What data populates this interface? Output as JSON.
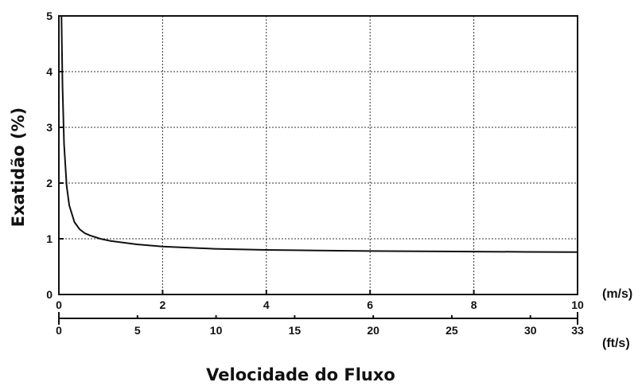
{
  "chart_data": {
    "type": "line",
    "title": "",
    "xlabel": "Velocidade do Fluxo",
    "ylabel": "Exatidão (%)",
    "x_unit": "(m/s)",
    "secondary_x_unit": "(ft/s)",
    "xlim": [
      0,
      10
    ],
    "ylim": [
      0,
      5
    ],
    "x_ticks": [
      "0",
      "2",
      "4",
      "6",
      "8",
      "10"
    ],
    "y_ticks": [
      "0",
      "1",
      "2",
      "3",
      "4",
      "5"
    ],
    "secondary_x_ticks": [
      "0",
      "5",
      "10",
      "15",
      "20",
      "25",
      "30",
      "33"
    ],
    "secondary_x_values": [
      0,
      5,
      10,
      15,
      20,
      25,
      30,
      33
    ],
    "grid": true,
    "series": [
      {
        "x": [
          0.05,
          0.07,
          0.1,
          0.15,
          0.2,
          0.3,
          0.4,
          0.5,
          0.6,
          0.8,
          1.0,
          1.5,
          2.0,
          3.0,
          4.0,
          5.0,
          6.0,
          7.0,
          8.0,
          9.0,
          10.0
        ],
        "y": [
          5.0,
          3.75,
          2.7,
          1.95,
          1.6,
          1.3,
          1.17,
          1.1,
          1.06,
          1.0,
          0.96,
          0.9,
          0.86,
          0.82,
          0.8,
          0.79,
          0.78,
          0.775,
          0.77,
          0.765,
          0.76
        ]
      }
    ]
  }
}
